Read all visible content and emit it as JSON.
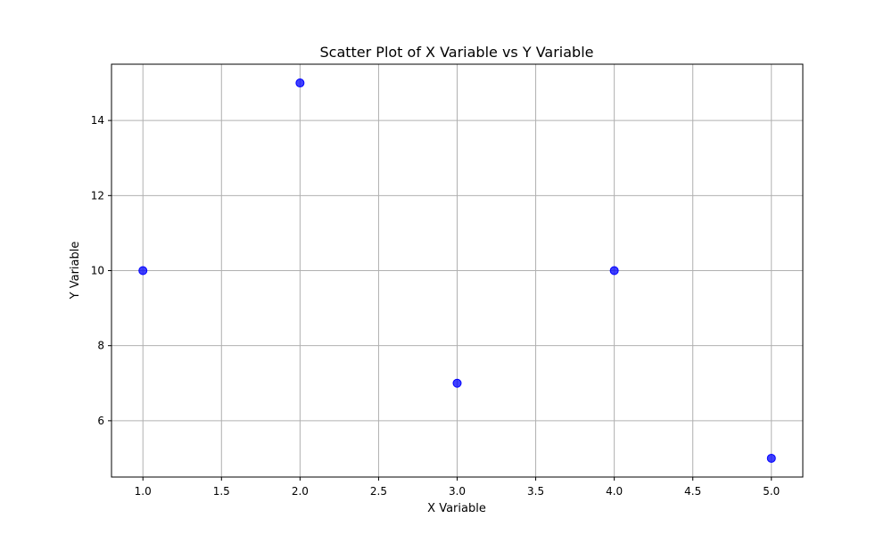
{
  "chart_data": {
    "type": "scatter",
    "title": "Scatter Plot of X Variable vs Y Variable",
    "xlabel": "X Variable",
    "ylabel": "Y Variable",
    "xlim": [
      0.8,
      5.2
    ],
    "ylim": [
      4.5,
      15.5
    ],
    "xticks": [
      1.0,
      1.5,
      2.0,
      2.5,
      3.0,
      3.5,
      4.0,
      4.5,
      5.0
    ],
    "xtick_labels": [
      "1.0",
      "1.5",
      "2.0",
      "2.5",
      "3.0",
      "3.5",
      "4.0",
      "4.5",
      "5.0"
    ],
    "yticks": [
      6,
      8,
      10,
      12,
      14
    ],
    "ytick_labels": [
      "6",
      "8",
      "10",
      "12",
      "14"
    ],
    "grid": true,
    "series": [
      {
        "color": "#0000ff",
        "x": [
          1,
          2,
          3,
          4,
          5
        ],
        "y": [
          10,
          15,
          7,
          10,
          5
        ]
      }
    ]
  }
}
